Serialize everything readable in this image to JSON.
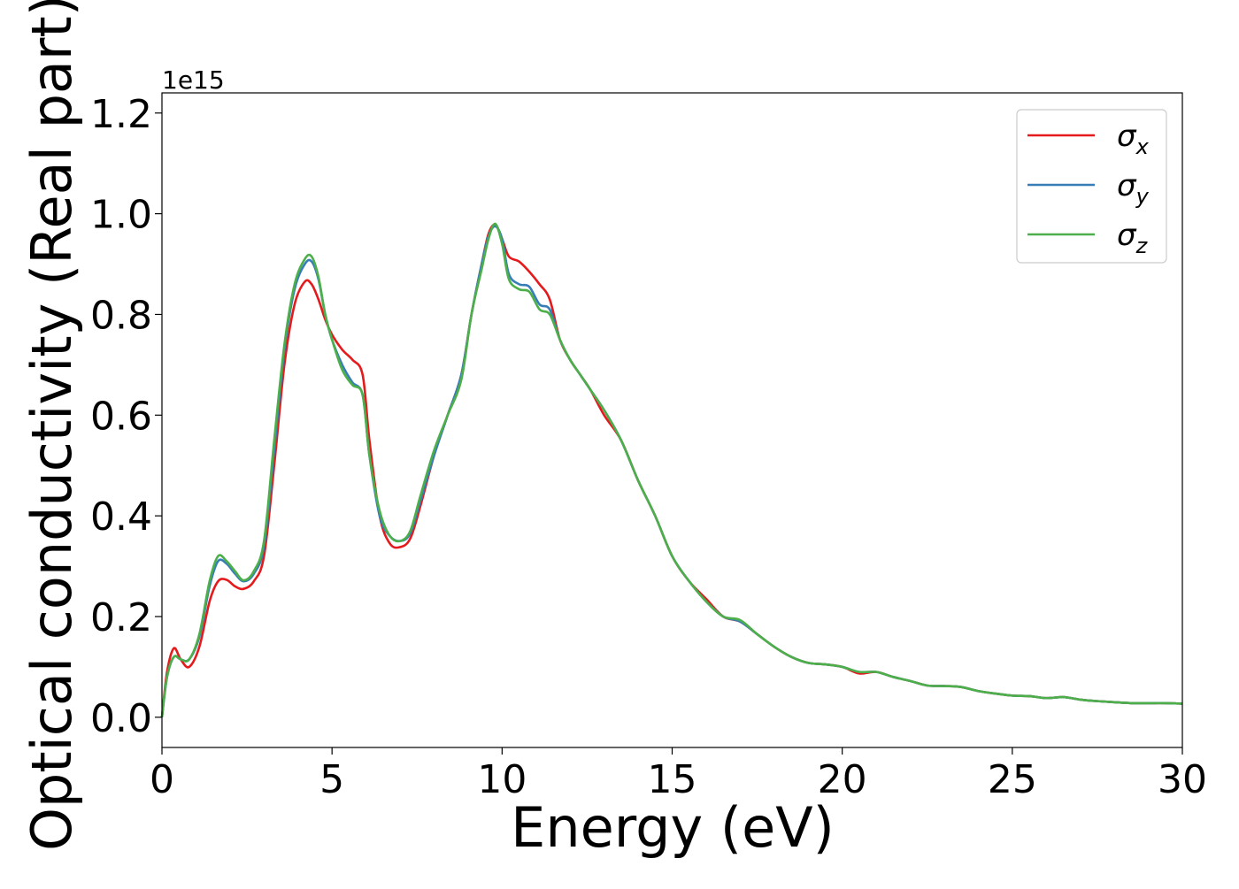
{
  "chart_data": {
    "type": "line",
    "title": "",
    "xlabel": "Energy (eV)",
    "ylabel": "Optical conductivity (Real part)",
    "y_offset_text": "1e15",
    "y_scale": 1000000000000000.0,
    "xlim": [
      0,
      30
    ],
    "ylim": [
      -0.06,
      1.24
    ],
    "x_ticks": [
      0,
      5,
      10,
      15,
      20,
      25,
      30
    ],
    "x_tick_labels": [
      "0",
      "5",
      "10",
      "15",
      "20",
      "25",
      "30"
    ],
    "y_ticks": [
      0.0,
      0.2,
      0.4,
      0.6,
      0.8,
      1.0,
      1.2
    ],
    "y_tick_labels": [
      "0.0",
      "0.2",
      "0.4",
      "0.6",
      "0.8",
      "1.0",
      "1.2"
    ],
    "grid": false,
    "legend_position": "top-right",
    "series": [
      {
        "name": "σx",
        "legend_symbol": "σ",
        "legend_sub": "x",
        "color": "#e41a1c",
        "x": [
          0,
          0.15,
          0.35,
          0.55,
          0.8,
          1.1,
          1.4,
          1.65,
          1.9,
          2.15,
          2.4,
          2.7,
          3.0,
          3.3,
          3.6,
          3.9,
          4.2,
          4.4,
          4.6,
          4.8,
          5.0,
          5.3,
          5.6,
          5.9,
          6.1,
          6.4,
          6.7,
          7.0,
          7.3,
          7.6,
          8.0,
          8.4,
          8.8,
          9.1,
          9.4,
          9.6,
          9.8,
          10.0,
          10.2,
          10.5,
          10.8,
          11.1,
          11.4,
          11.7,
          12.0,
          12.3,
          12.6,
          13.0,
          13.5,
          14.0,
          14.5,
          15.0,
          15.5,
          16.0,
          16.5,
          17.0,
          17.5,
          18.0,
          18.5,
          19.0,
          19.5,
          20.0,
          20.5,
          21.0,
          21.5,
          22.0,
          22.5,
          23.0,
          23.5,
          24.0,
          24.5,
          25.0,
          25.5,
          26.0,
          26.5,
          27.0,
          27.5,
          28.0,
          28.5,
          29.0,
          29.5,
          30.0
        ],
        "y": [
          0.0,
          0.09,
          0.137,
          0.115,
          0.1,
          0.14,
          0.23,
          0.27,
          0.273,
          0.26,
          0.255,
          0.27,
          0.32,
          0.5,
          0.7,
          0.82,
          0.865,
          0.86,
          0.83,
          0.79,
          0.76,
          0.73,
          0.71,
          0.68,
          0.55,
          0.4,
          0.345,
          0.338,
          0.355,
          0.42,
          0.52,
          0.6,
          0.68,
          0.8,
          0.9,
          0.96,
          0.978,
          0.95,
          0.915,
          0.905,
          0.885,
          0.86,
          0.83,
          0.75,
          0.71,
          0.68,
          0.65,
          0.6,
          0.55,
          0.47,
          0.4,
          0.32,
          0.27,
          0.235,
          0.2,
          0.19,
          0.165,
          0.14,
          0.12,
          0.108,
          0.105,
          0.1,
          0.087,
          0.09,
          0.08,
          0.072,
          0.063,
          0.062,
          0.06,
          0.052,
          0.047,
          0.043,
          0.042,
          0.038,
          0.04,
          0.035,
          0.032,
          0.03,
          0.028,
          0.028,
          0.028,
          0.027
        ]
      },
      {
        "name": "σy",
        "legend_symbol": "σ",
        "legend_sub": "y",
        "color": "#377eb8",
        "x": [
          0,
          0.15,
          0.35,
          0.55,
          0.8,
          1.1,
          1.4,
          1.65,
          1.9,
          2.15,
          2.4,
          2.7,
          3.0,
          3.3,
          3.6,
          3.9,
          4.2,
          4.4,
          4.6,
          4.8,
          5.0,
          5.3,
          5.6,
          5.9,
          6.1,
          6.4,
          6.7,
          7.0,
          7.3,
          7.6,
          8.0,
          8.4,
          8.8,
          9.1,
          9.4,
          9.6,
          9.8,
          10.0,
          10.2,
          10.5,
          10.8,
          11.1,
          11.4,
          11.7,
          12.0,
          12.3,
          12.6,
          13.0,
          13.5,
          14.0,
          14.5,
          15.0,
          15.5,
          16.0,
          16.5,
          17.0,
          17.5,
          18.0,
          18.5,
          19.0,
          19.5,
          20.0,
          20.5,
          21.0,
          21.5,
          22.0,
          22.5,
          23.0,
          23.5,
          24.0,
          24.5,
          25.0,
          25.5,
          26.0,
          26.5,
          27.0,
          27.5,
          28.0,
          28.5,
          29.0,
          29.5,
          30.0
        ],
        "y": [
          0.0,
          0.08,
          0.12,
          0.115,
          0.115,
          0.16,
          0.26,
          0.31,
          0.305,
          0.285,
          0.27,
          0.285,
          0.34,
          0.53,
          0.73,
          0.85,
          0.9,
          0.905,
          0.87,
          0.8,
          0.75,
          0.7,
          0.665,
          0.64,
          0.52,
          0.4,
          0.36,
          0.35,
          0.365,
          0.43,
          0.52,
          0.6,
          0.68,
          0.8,
          0.9,
          0.955,
          0.975,
          0.95,
          0.88,
          0.86,
          0.855,
          0.82,
          0.81,
          0.75,
          0.71,
          0.68,
          0.65,
          0.61,
          0.55,
          0.47,
          0.4,
          0.32,
          0.27,
          0.23,
          0.2,
          0.19,
          0.165,
          0.14,
          0.12,
          0.108,
          0.105,
          0.1,
          0.09,
          0.09,
          0.08,
          0.072,
          0.063,
          0.062,
          0.06,
          0.052,
          0.047,
          0.043,
          0.042,
          0.038,
          0.04,
          0.035,
          0.032,
          0.03,
          0.028,
          0.028,
          0.028,
          0.027
        ]
      },
      {
        "name": "σz",
        "legend_symbol": "σ",
        "legend_sub": "z",
        "color": "#4daf4a",
        "x": [
          0,
          0.15,
          0.35,
          0.55,
          0.8,
          1.1,
          1.4,
          1.65,
          1.9,
          2.15,
          2.4,
          2.7,
          3.0,
          3.3,
          3.6,
          3.9,
          4.2,
          4.4,
          4.6,
          4.8,
          5.0,
          5.3,
          5.6,
          5.9,
          6.1,
          6.4,
          6.7,
          7.0,
          7.3,
          7.6,
          8.0,
          8.4,
          8.8,
          9.1,
          9.4,
          9.6,
          9.8,
          10.0,
          10.2,
          10.5,
          10.8,
          11.1,
          11.4,
          11.7,
          12.0,
          12.3,
          12.6,
          13.0,
          13.5,
          14.0,
          14.5,
          15.0,
          15.5,
          16.0,
          16.5,
          17.0,
          17.5,
          18.0,
          18.5,
          19.0,
          19.5,
          20.0,
          20.5,
          21.0,
          21.5,
          22.0,
          22.5,
          23.0,
          23.5,
          24.0,
          24.5,
          25.0,
          25.5,
          26.0,
          26.5,
          27.0,
          27.5,
          28.0,
          28.5,
          29.0,
          29.5,
          30.0
        ],
        "y": [
          0.0,
          0.08,
          0.12,
          0.115,
          0.115,
          0.165,
          0.27,
          0.32,
          0.31,
          0.29,
          0.272,
          0.29,
          0.35,
          0.55,
          0.74,
          0.86,
          0.91,
          0.915,
          0.875,
          0.8,
          0.75,
          0.69,
          0.66,
          0.64,
          0.52,
          0.41,
          0.36,
          0.35,
          0.37,
          0.44,
          0.53,
          0.6,
          0.67,
          0.8,
          0.89,
          0.95,
          0.98,
          0.94,
          0.87,
          0.85,
          0.845,
          0.81,
          0.8,
          0.75,
          0.71,
          0.68,
          0.65,
          0.61,
          0.55,
          0.47,
          0.4,
          0.32,
          0.27,
          0.23,
          0.2,
          0.193,
          0.165,
          0.14,
          0.12,
          0.108,
          0.105,
          0.1,
          0.09,
          0.09,
          0.08,
          0.072,
          0.063,
          0.062,
          0.06,
          0.052,
          0.047,
          0.043,
          0.042,
          0.038,
          0.04,
          0.035,
          0.032,
          0.03,
          0.028,
          0.028,
          0.028,
          0.027
        ]
      }
    ]
  }
}
